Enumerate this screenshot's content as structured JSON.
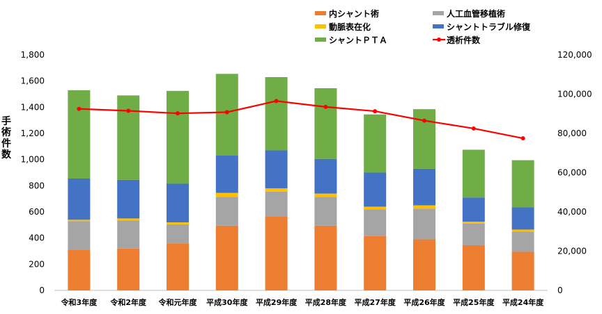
{
  "chart_data": {
    "type": "bar",
    "stacked": true,
    "categories": [
      "令和3年度",
      "令和2年度",
      "令和元年度",
      "平成30年度",
      "平成29年度",
      "平成28年度",
      "平成27年度",
      "平成26年度",
      "平成25年度",
      "平成24年度"
    ],
    "series": [
      {
        "name": "内シャント術",
        "color": "#ED7D31",
        "values": [
          310,
          320,
          360,
          495,
          565,
          495,
          415,
          390,
          345,
          295
        ]
      },
      {
        "name": "人工血管移植術",
        "color": "#A5A5A5",
        "values": [
          220,
          215,
          145,
          220,
          190,
          220,
          205,
          235,
          165,
          155
        ]
      },
      {
        "name": "動脈表在化",
        "color": "#FFC000",
        "values": [
          10,
          15,
          15,
          30,
          25,
          25,
          20,
          25,
          15,
          15
        ]
      },
      {
        "name": "シャントトラブル修復",
        "color": "#4472C4",
        "values": [
          315,
          295,
          295,
          285,
          290,
          265,
          260,
          280,
          185,
          170
        ]
      },
      {
        "name": "シャントＰＴＡ",
        "color": "#70AD47",
        "values": [
          675,
          645,
          710,
          625,
          560,
          540,
          445,
          455,
          365,
          360
        ]
      }
    ],
    "line_series": {
      "name": "透析件数",
      "color": "#FF0000",
      "axis": "right",
      "values": [
        92500,
        91500,
        90200,
        90800,
        96500,
        93500,
        91300,
        86500,
        82500,
        77500
      ]
    },
    "ylabel": "手術件数",
    "ylim": [
      0,
      1800
    ],
    "y_ticks": [
      "0",
      "200",
      "400",
      "600",
      "800",
      "1,000",
      "1,200",
      "1,400",
      "1,600",
      "1,800"
    ],
    "y2lim": [
      0,
      120000
    ],
    "y2_ticks": [
      "0",
      "20,000",
      "40,000",
      "60,000",
      "80,000",
      "100,000",
      "120,000"
    ],
    "grid": false,
    "legend_position": "top-right"
  }
}
